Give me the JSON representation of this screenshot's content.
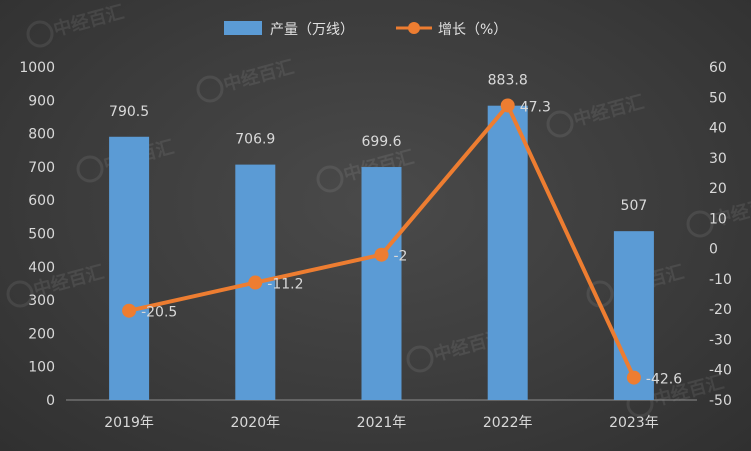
{
  "chart_data": {
    "type": "bar+line",
    "categories": [
      "2019年",
      "2020年",
      "2021年",
      "2022年",
      "2023年"
    ],
    "series": [
      {
        "name": "产量（万线）",
        "type": "bar",
        "axis": "left",
        "values": [
          790.5,
          706.9,
          699.6,
          883.8,
          507
        ],
        "labels": [
          "790.5",
          "706.9",
          "699.6",
          "883.8",
          "507"
        ],
        "color": "#5b9bd5"
      },
      {
        "name": "增长（%）",
        "type": "line",
        "axis": "right",
        "values": [
          -20.5,
          -11.2,
          -2,
          47.3,
          -42.6
        ],
        "labels": [
          "-20.5",
          "-11.2",
          "-2",
          "47.3",
          "-42.6"
        ],
        "color": "#ed7d31"
      }
    ],
    "y_left": {
      "ylim": [
        0,
        1000
      ],
      "ticks": [
        "0",
        "100",
        "200",
        "300",
        "400",
        "500",
        "600",
        "700",
        "800",
        "900",
        "1000"
      ]
    },
    "y_right": {
      "ylim": [
        -50,
        60
      ],
      "ticks": [
        "-50",
        "-40",
        "-30",
        "-20",
        "-10",
        "0",
        "10",
        "20",
        "30",
        "40",
        "50",
        "60"
      ]
    },
    "legend_position": "top-center",
    "grid": false
  },
  "watermark": {
    "text": "中经百汇"
  }
}
